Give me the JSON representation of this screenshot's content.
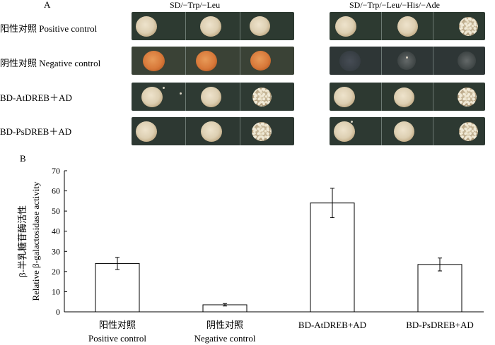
{
  "panel_a": {
    "label": "A",
    "condition_left": "SD/−Trp/−Leu",
    "condition_right": "SD/−Trp/−Leu/−His/−Ade",
    "rows": [
      {
        "label": "阳性对照 Positive control"
      },
      {
        "label": "阴性对照 Negative control"
      },
      {
        "label": "BD-AtDREB＋AD"
      },
      {
        "label": "BD-PsDREB＋AD"
      }
    ]
  },
  "panel_b": {
    "label": "B",
    "chart_data": {
      "type": "bar",
      "categories": [
        {
          "cn": "阳性对照",
          "en": "Positive control"
        },
        {
          "cn": "阴性对照",
          "en": "Negative control"
        },
        {
          "cn": "BD-AtDREB+AD",
          "en": ""
        },
        {
          "cn": "BD-PsDREB+AD",
          "en": ""
        }
      ],
      "values": [
        24,
        3.5,
        54,
        23.5
      ],
      "errors": [
        3,
        0.6,
        7.3,
        3.2
      ],
      "ylim": [
        0,
        70
      ],
      "yticks": [
        0,
        10,
        20,
        30,
        40,
        50,
        60,
        70
      ],
      "ylabel_cn": "β-半乳糖苷酶活性",
      "ylabel_en": "Relative β-galactosidase activity",
      "bar_color": "#ffffff",
      "edge_color": "#000000"
    }
  }
}
